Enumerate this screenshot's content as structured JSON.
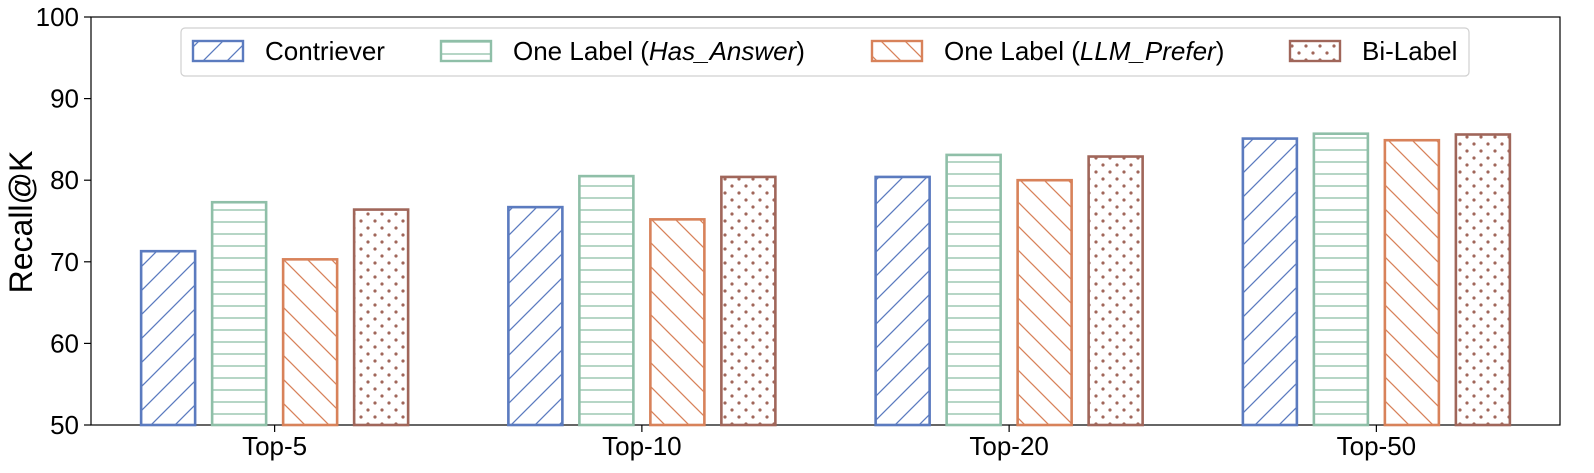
{
  "chart_data": {
    "type": "bar",
    "title": "",
    "xlabel": "",
    "ylabel": "Recall@K",
    "ylim": [
      50,
      100
    ],
    "yticks": [
      50,
      60,
      70,
      80,
      90,
      100
    ],
    "categories": [
      "Top-5",
      "Top-10",
      "Top-20",
      "Top-50"
    ],
    "grid": false,
    "legend": {
      "placement": "top-center",
      "entries": [
        {
          "prefix": "Contriever",
          "italic": "",
          "suffix": ""
        },
        {
          "prefix": "One Label (",
          "italic": "Has_Answer",
          "suffix": ")"
        },
        {
          "prefix": "One Label (",
          "italic": "LLM_Prefer",
          "suffix": ")"
        },
        {
          "prefix": "Bi-Label",
          "italic": "",
          "suffix": ""
        }
      ]
    },
    "series": [
      {
        "values": [
          71.3,
          76.7,
          80.4,
          85.1
        ],
        "color": "#5b7bbf",
        "pattern": "diagonal-forward"
      },
      {
        "values": [
          77.3,
          80.5,
          83.1,
          85.7
        ],
        "color": "#8fbfa8",
        "pattern": "horizontal"
      },
      {
        "values": [
          70.3,
          75.2,
          80.0,
          84.9
        ],
        "color": "#d8825a",
        "pattern": "diagonal-back"
      },
      {
        "values": [
          76.4,
          80.4,
          82.9,
          85.6
        ],
        "color": "#a0665a",
        "pattern": "dots"
      }
    ]
  }
}
